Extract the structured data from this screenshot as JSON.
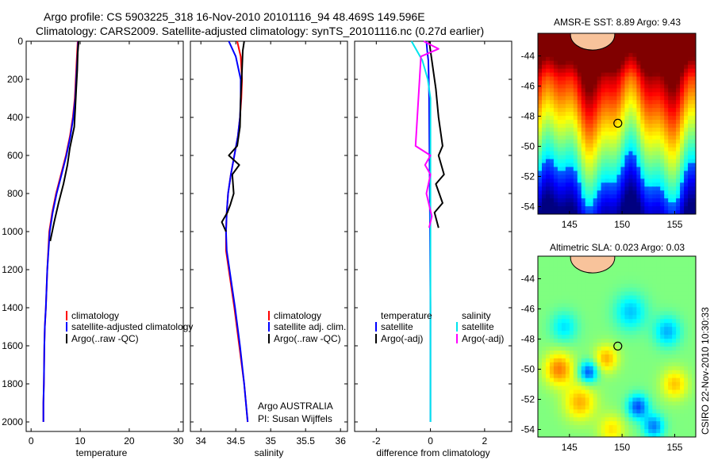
{
  "header": {
    "line1": "Argo profile: CS 5903225_318 16-Nov-2010 20101116_94 48.469S 149.596E",
    "line2": "Climatology: CARS2009. Satellite-adjusted climatology: synTS_20101116.nc (0.27d earlier)"
  },
  "colors": {
    "climatology": "#ff0000",
    "satellite": "#0000ff",
    "argo": "#000000",
    "salinity_diff": "#00e5ee",
    "salinity_argo_diff": "#ff00ff",
    "land": "#f8c39b"
  },
  "y_axis": {
    "ticks": [
      "0",
      "200",
      "400",
      "600",
      "800",
      "1000",
      "1200",
      "1400",
      "1600",
      "1800",
      "2000"
    ]
  },
  "panels": {
    "temperature": {
      "xlabel": "temperature",
      "xticks": [
        "0",
        "10",
        "20",
        "30"
      ],
      "legend": [
        "climatology",
        "satellite-adjusted climatology",
        "Argo(..raw -QC)"
      ]
    },
    "salinity": {
      "xlabel": "salinity",
      "xticks": [
        "34",
        "34.5",
        "35",
        "35.5",
        "36"
      ],
      "legend": [
        "climatology",
        "satellite adj. clim.",
        "Argo(..raw -QC)"
      ],
      "note1": "Argo AUSTRALIA",
      "note2": "PI: Susan Wijffels"
    },
    "difference": {
      "xlabel": "difference from climatology",
      "xticks": [
        "-2",
        "0",
        "2"
      ],
      "legend_temp_title": "temperature",
      "legend_temp": [
        "satellite",
        "Argo(-adj)"
      ],
      "legend_sal_title": "salinity",
      "legend_sal": [
        "satellite",
        "Argo(-adj)"
      ]
    },
    "sst_map": {
      "title": "AMSR-E SST: 8.89 Argo: 9.43",
      "yticks": [
        "-44",
        "-46",
        "-48",
        "-50",
        "-52",
        "-54"
      ],
      "xticks": [
        "145",
        "150",
        "155"
      ]
    },
    "sla_map": {
      "title": "Altimetric SLA: 0.023 Argo: 0.03",
      "yticks": [
        "-44",
        "-46",
        "-48",
        "-50",
        "-52",
        "-54"
      ],
      "xticks": [
        "145",
        "150",
        "155"
      ]
    }
  },
  "credit": "CSIRO 22-Nov-2010 10:30:33",
  "chart_data": [
    {
      "type": "line",
      "panel": "temperature",
      "xlabel": "temperature",
      "ylabel": "",
      "xlim": [
        -1,
        31
      ],
      "ylim": [
        2050,
        0
      ],
      "series": [
        {
          "name": "climatology",
          "x": [
            9.5,
            9.3,
            9.1,
            8.9,
            8.5,
            7.9,
            7.1,
            6.1,
            5.1,
            4.3,
            3.7,
            3.3,
            3.0,
            2.8,
            2.7,
            2.6,
            2.5,
            2.5
          ],
          "y": [
            0,
            100,
            200,
            300,
            400,
            500,
            600,
            700,
            800,
            900,
            1000,
            1200,
            1400,
            1500,
            1600,
            1800,
            1900,
            2000
          ]
        },
        {
          "name": "satellite-adjusted climatology",
          "x": [
            9.6,
            9.4,
            9.2,
            9.0,
            8.6,
            8.0,
            7.2,
            6.2,
            5.2,
            4.4,
            3.8,
            3.3,
            3.0,
            2.8,
            2.7,
            2.6,
            2.5,
            2.5
          ],
          "y": [
            0,
            100,
            200,
            300,
            400,
            500,
            600,
            700,
            800,
            900,
            1000,
            1200,
            1400,
            1500,
            1600,
            1800,
            1900,
            2000
          ]
        },
        {
          "name": "Argo(..raw -QC)",
          "x": [
            9.7,
            9.5,
            9.4,
            9.2,
            9.0,
            8.8,
            7.9,
            7.4,
            6.6,
            5.6,
            4.7,
            3.9
          ],
          "y": [
            0,
            60,
            150,
            250,
            350,
            450,
            560,
            650,
            750,
            850,
            950,
            1050
          ]
        }
      ]
    },
    {
      "type": "line",
      "panel": "salinity",
      "xlabel": "salinity",
      "ylabel": "",
      "xlim": [
        33.85,
        36.1
      ],
      "ylim": [
        2050,
        0
      ],
      "series": [
        {
          "name": "climatology",
          "x": [
            34.52,
            34.57,
            34.59,
            34.58,
            34.56,
            34.53,
            34.48,
            34.43,
            34.39,
            34.37,
            34.36,
            34.36,
            34.4,
            34.48,
            34.55,
            34.62,
            34.67
          ],
          "y": [
            0,
            80,
            200,
            300,
            400,
            500,
            600,
            700,
            800,
            900,
            1000,
            1100,
            1200,
            1400,
            1600,
            1800,
            2000
          ]
        },
        {
          "name": "satellite adj. clim.",
          "x": [
            34.4,
            34.5,
            34.57,
            34.57,
            34.56,
            34.53,
            34.48,
            34.43,
            34.39,
            34.37,
            34.36,
            34.37,
            34.41,
            34.49,
            34.56,
            34.62,
            34.67
          ],
          "y": [
            0,
            80,
            200,
            300,
            400,
            500,
            600,
            700,
            800,
            900,
            1000,
            1100,
            1200,
            1400,
            1600,
            1800,
            2000
          ]
        },
        {
          "name": "Argo(..raw -QC)",
          "x": [
            34.62,
            34.6,
            34.59,
            34.57,
            34.56,
            34.52,
            34.4,
            34.55,
            34.45,
            34.47,
            34.42,
            34.38,
            34.3,
            34.36
          ],
          "y": [
            0,
            50,
            150,
            300,
            450,
            550,
            600,
            650,
            700,
            800,
            860,
            900,
            950,
            1000
          ]
        }
      ]
    },
    {
      "type": "line",
      "panel": "difference",
      "xlabel": "difference from climatology",
      "ylabel": "",
      "xlim": [
        -2.8,
        3.0
      ],
      "ylim": [
        2050,
        0
      ],
      "series": [
        {
          "name": "temperature satellite",
          "x": [
            -0.15,
            -0.12,
            -0.08,
            -0.06,
            -0.05,
            -0.04,
            -0.03,
            -0.02,
            -0.01,
            0.0,
            0.0,
            0.0
          ],
          "y": [
            0,
            50,
            100,
            200,
            300,
            500,
            700,
            900,
            1100,
            1400,
            1700,
            2000
          ]
        },
        {
          "name": "temperature Argo(-adj)",
          "x": [
            -0.05,
            0.05,
            0.2,
            0.3,
            0.35,
            0.45,
            0.3,
            0.5,
            0.2,
            0.45,
            0.15,
            0.3
          ],
          "y": [
            0,
            100,
            250,
            400,
            450,
            550,
            600,
            700,
            750,
            850,
            900,
            980
          ]
        },
        {
          "name": "salinity satellite",
          "x": [
            -0.7,
            -0.5,
            -0.3,
            -0.2,
            -0.1,
            0.0,
            0.0,
            0.0,
            0.0,
            0.0,
            0.0
          ],
          "y": [
            0,
            50,
            100,
            150,
            200,
            300,
            600,
            900,
            1200,
            1600,
            2000
          ]
        },
        {
          "name": "salinity Argo(-adj)",
          "x": [
            -0.25,
            0.3,
            -0.35,
            -0.55,
            0.0,
            -0.2,
            0.0,
            -0.15,
            0.05,
            -0.05
          ],
          "y": [
            0,
            40,
            80,
            550,
            600,
            650,
            700,
            800,
            920,
            980
          ]
        }
      ]
    },
    {
      "type": "heatmap",
      "panel": "sst_map",
      "title": "AMSR-E SST: 8.89 Argo: 9.43",
      "xlim": [
        142,
        157
      ],
      "ylim": [
        -54.5,
        -42.5
      ],
      "argo_position": [
        149.596,
        -48.469
      ]
    },
    {
      "type": "heatmap",
      "panel": "sla_map",
      "title": "Altimetric SLA: 0.023 Argo: 0.03",
      "xlim": [
        142,
        157
      ],
      "ylim": [
        -54.5,
        -42.5
      ],
      "argo_position": [
        149.596,
        -48.469
      ]
    }
  ]
}
